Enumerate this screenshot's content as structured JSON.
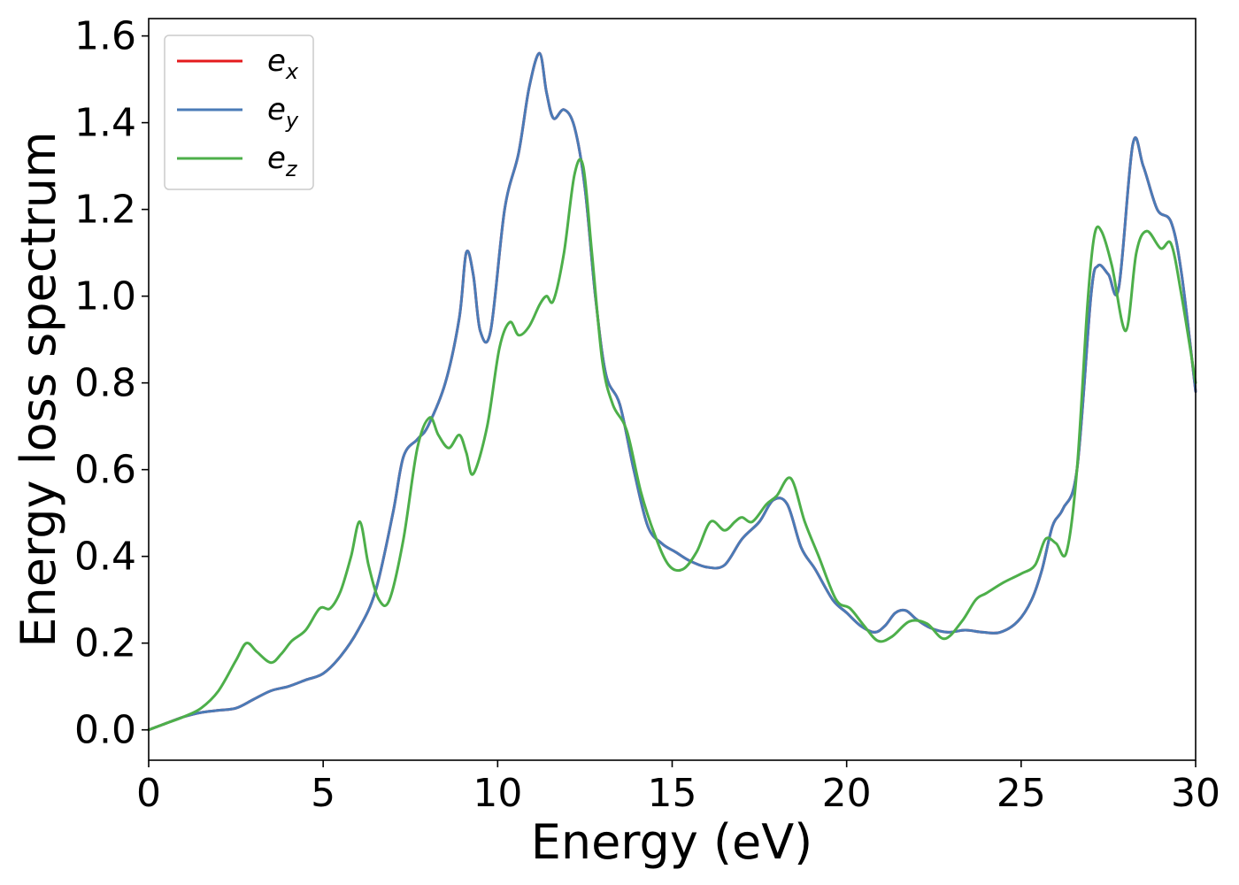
{
  "chart_data": {
    "type": "line",
    "xlabel": "Energy (eV)",
    "ylabel": "Energy loss spectrum",
    "xlim": [
      0,
      30
    ],
    "ylim": [
      -0.07,
      1.64
    ],
    "xticks": [
      0,
      5,
      10,
      15,
      20,
      25,
      30
    ],
    "xtick_labels": [
      "0",
      "5",
      "10",
      "15",
      "20",
      "25",
      "30"
    ],
    "yticks": [
      0.0,
      0.2,
      0.4,
      0.6,
      0.8,
      1.0,
      1.2,
      1.4,
      1.6
    ],
    "ytick_labels": [
      "0.0",
      "0.2",
      "0.4",
      "0.6",
      "0.8",
      "1.0",
      "1.2",
      "1.4",
      "1.6"
    ],
    "grid": false,
    "legend_position": "top-left",
    "series": [
      {
        "name": "e_x",
        "legend": {
          "base": "e",
          "sub": "x"
        },
        "color": "#e41a1c",
        "x": [
          0,
          0.5,
          1,
          1.5,
          2,
          2.5,
          3,
          3.5,
          4,
          4.5,
          5,
          5.5,
          6,
          6.5,
          7,
          7.3,
          7.7,
          8,
          8.5,
          8.9,
          9.1,
          9.3,
          9.5,
          9.8,
          10.2,
          10.6,
          10.9,
          11.2,
          11.4,
          11.6,
          11.9,
          12.2,
          12.5,
          12.8,
          13.1,
          13.5,
          13.9,
          14.3,
          14.7,
          15.1,
          15.5,
          16,
          16.5,
          17,
          17.5,
          17.9,
          18.3,
          18.7,
          19.1,
          19.6,
          20,
          20.4,
          20.8,
          21.1,
          21.4,
          21.7,
          22,
          22.4,
          22.9,
          23.4,
          23.9,
          24.4,
          24.9,
          25.3,
          25.6,
          25.9,
          26.2,
          26.6,
          27,
          27.2,
          27.5,
          27.8,
          28.2,
          28.5,
          28.9,
          29.3,
          29.6,
          30
        ],
        "y": [
          0.0,
          0.015,
          0.03,
          0.04,
          0.045,
          0.05,
          0.07,
          0.09,
          0.1,
          0.115,
          0.13,
          0.17,
          0.23,
          0.32,
          0.5,
          0.63,
          0.67,
          0.7,
          0.8,
          0.95,
          1.1,
          1.05,
          0.92,
          0.92,
          1.2,
          1.33,
          1.48,
          1.56,
          1.47,
          1.41,
          1.43,
          1.39,
          1.25,
          1.0,
          0.82,
          0.75,
          0.6,
          0.47,
          0.43,
          0.41,
          0.39,
          0.375,
          0.38,
          0.44,
          0.48,
          0.53,
          0.52,
          0.42,
          0.37,
          0.3,
          0.27,
          0.24,
          0.225,
          0.24,
          0.27,
          0.275,
          0.255,
          0.235,
          0.225,
          0.23,
          0.225,
          0.225,
          0.25,
          0.3,
          0.37,
          0.47,
          0.51,
          0.6,
          1.0,
          1.07,
          1.05,
          1.02,
          1.35,
          1.3,
          1.2,
          1.17,
          1.05,
          0.78
        ]
      },
      {
        "name": "e_y",
        "legend": {
          "base": "e",
          "sub": "y"
        },
        "color": "#4a7bb7",
        "x": [
          0,
          0.5,
          1,
          1.5,
          2,
          2.5,
          3,
          3.5,
          4,
          4.5,
          5,
          5.5,
          6,
          6.5,
          7,
          7.3,
          7.7,
          8,
          8.5,
          8.9,
          9.1,
          9.3,
          9.5,
          9.8,
          10.2,
          10.6,
          10.9,
          11.2,
          11.4,
          11.6,
          11.9,
          12.2,
          12.5,
          12.8,
          13.1,
          13.5,
          13.9,
          14.3,
          14.7,
          15.1,
          15.5,
          16,
          16.5,
          17,
          17.5,
          17.9,
          18.3,
          18.7,
          19.1,
          19.6,
          20,
          20.4,
          20.8,
          21.1,
          21.4,
          21.7,
          22,
          22.4,
          22.9,
          23.4,
          23.9,
          24.4,
          24.9,
          25.3,
          25.6,
          25.9,
          26.2,
          26.6,
          27,
          27.2,
          27.5,
          27.8,
          28.2,
          28.5,
          28.9,
          29.3,
          29.6,
          30
        ],
        "y": [
          0.0,
          0.015,
          0.03,
          0.04,
          0.045,
          0.05,
          0.07,
          0.09,
          0.1,
          0.115,
          0.13,
          0.17,
          0.23,
          0.32,
          0.5,
          0.63,
          0.67,
          0.7,
          0.8,
          0.95,
          1.1,
          1.05,
          0.92,
          0.92,
          1.2,
          1.33,
          1.48,
          1.56,
          1.47,
          1.41,
          1.43,
          1.39,
          1.25,
          1.0,
          0.82,
          0.75,
          0.6,
          0.47,
          0.43,
          0.41,
          0.39,
          0.375,
          0.38,
          0.44,
          0.48,
          0.53,
          0.52,
          0.42,
          0.37,
          0.3,
          0.27,
          0.24,
          0.225,
          0.24,
          0.27,
          0.275,
          0.255,
          0.235,
          0.225,
          0.23,
          0.225,
          0.225,
          0.25,
          0.3,
          0.37,
          0.47,
          0.51,
          0.6,
          1.0,
          1.07,
          1.05,
          1.02,
          1.35,
          1.3,
          1.2,
          1.17,
          1.05,
          0.78
        ]
      },
      {
        "name": "e_z",
        "legend": {
          "base": "e",
          "sub": "z"
        },
        "color": "#4daf4a",
        "x": [
          0,
          0.5,
          1,
          1.5,
          2,
          2.5,
          2.8,
          3.1,
          3.5,
          3.8,
          4.1,
          4.5,
          4.9,
          5.2,
          5.5,
          5.8,
          6.05,
          6.3,
          6.6,
          6.9,
          7.3,
          7.7,
          8.05,
          8.3,
          8.6,
          8.9,
          9.1,
          9.3,
          9.7,
          10.05,
          10.35,
          10.6,
          10.9,
          11.2,
          11.4,
          11.6,
          11.9,
          12.2,
          12.45,
          12.7,
          13.0,
          13.3,
          13.7,
          14.1,
          14.5,
          14.9,
          15.3,
          15.7,
          16.1,
          16.5,
          16.8,
          17.0,
          17.3,
          17.7,
          18.0,
          18.4,
          18.8,
          19.2,
          19.7,
          20.1,
          20.5,
          20.9,
          21.3,
          21.8,
          22.3,
          22.8,
          23.3,
          23.7,
          24.0,
          24.5,
          25.0,
          25.4,
          25.7,
          26.0,
          26.3,
          26.6,
          26.9,
          27.1,
          27.3,
          27.6,
          28.0,
          28.3,
          28.6,
          29.0,
          29.3,
          29.6,
          30
        ],
        "y": [
          0.0,
          0.015,
          0.03,
          0.05,
          0.09,
          0.16,
          0.2,
          0.18,
          0.155,
          0.175,
          0.205,
          0.23,
          0.28,
          0.28,
          0.32,
          0.4,
          0.48,
          0.38,
          0.3,
          0.3,
          0.44,
          0.65,
          0.72,
          0.68,
          0.65,
          0.68,
          0.64,
          0.59,
          0.7,
          0.88,
          0.94,
          0.91,
          0.93,
          0.98,
          1.0,
          0.99,
          1.1,
          1.28,
          1.3,
          1.1,
          0.85,
          0.75,
          0.69,
          0.55,
          0.45,
          0.38,
          0.37,
          0.41,
          0.48,
          0.46,
          0.48,
          0.49,
          0.48,
          0.52,
          0.54,
          0.58,
          0.48,
          0.4,
          0.3,
          0.28,
          0.24,
          0.205,
          0.215,
          0.25,
          0.245,
          0.21,
          0.25,
          0.3,
          0.315,
          0.34,
          0.36,
          0.38,
          0.44,
          0.43,
          0.41,
          0.6,
          0.98,
          1.14,
          1.15,
          1.07,
          0.92,
          1.1,
          1.15,
          1.11,
          1.12,
          1.0,
          0.8
        ]
      }
    ]
  }
}
